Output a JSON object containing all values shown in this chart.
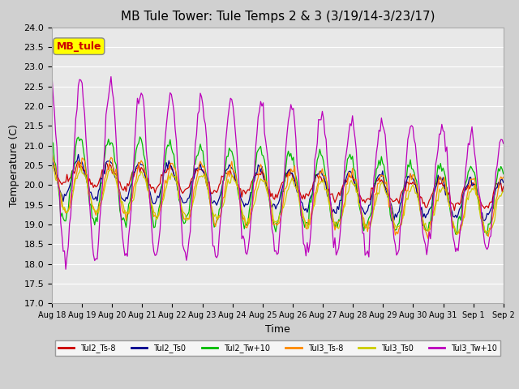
{
  "title": "MB Tule Tower: Tule Temps 2 & 3 (3/19/14-3/23/17)",
  "xlabel": "Time",
  "ylabel": "Temperature (C)",
  "ylim": [
    17.0,
    24.0
  ],
  "yticks": [
    17.0,
    17.5,
    18.0,
    18.5,
    19.0,
    19.5,
    20.0,
    20.5,
    21.0,
    21.5,
    22.0,
    22.5,
    23.0,
    23.5,
    24.0
  ],
  "legend_label": "MB_tule",
  "series_labels": [
    "Tul2_Ts-8",
    "Tul2_Ts0",
    "Tul2_Tw+10",
    "Tul3_Ts-8",
    "Tul3_Ts0",
    "Tul3_Tw+10"
  ],
  "series_colors": [
    "#cc0000",
    "#00008b",
    "#00bb00",
    "#ff8800",
    "#cccc00",
    "#bb00bb"
  ],
  "background_color": "#e8e8e8",
  "grid_color": "#ffffff",
  "title_fontsize": 11,
  "axis_fontsize": 9,
  "tick_fontsize": 8,
  "legend_box_facecolor": "#ffff00",
  "legend_box_edgecolor": "#888888",
  "legend_text_color": "#cc0000"
}
